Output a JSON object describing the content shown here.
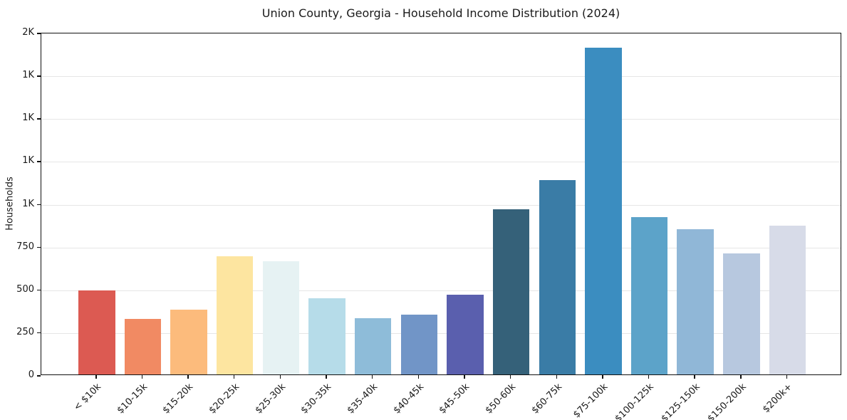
{
  "chart_data": {
    "type": "bar",
    "title": "Union County, Georgia - Household Income Distribution (2024)",
    "ylabel": "Households",
    "xlabel": "",
    "categories": [
      "< $10k",
      "$10-15k",
      "$15-20k",
      "$20-25k",
      "$25-30k",
      "$30-35k",
      "$35-40k",
      "$40-45k",
      "$45-50k",
      "$50-60k",
      "$60-75k",
      "$75-100k",
      "$100-125k",
      "$125-150k",
      "$150-200k",
      "$200k+"
    ],
    "values": [
      490,
      325,
      380,
      690,
      660,
      445,
      330,
      350,
      465,
      965,
      1135,
      1910,
      920,
      850,
      705,
      870
    ],
    "bar_colors": [
      "#dc5a52",
      "#f18a63",
      "#fcbb7c",
      "#fde5a0",
      "#e6f2f3",
      "#b6dce9",
      "#8ebcd9",
      "#7195c7",
      "#5a5fae",
      "#356179",
      "#3a7ca6",
      "#3b8dc0",
      "#5ca3c9",
      "#90b7d7",
      "#b7c8df",
      "#d7dbe8"
    ],
    "ylim": [
      0,
      2000
    ],
    "yticks": [
      {
        "value": 0,
        "label": "0"
      },
      {
        "value": 250,
        "label": "250"
      },
      {
        "value": 500,
        "label": "500"
      },
      {
        "value": 750,
        "label": "750"
      },
      {
        "value": 1000,
        "label": "1K"
      },
      {
        "value": 1250,
        "label": "1K"
      },
      {
        "value": 1500,
        "label": "1K"
      },
      {
        "value": 1750,
        "label": "1K"
      },
      {
        "value": 2000,
        "label": "2K"
      }
    ],
    "grid": "horizontal-only",
    "legend": "none"
  },
  "colors": {
    "background": "#ffffff",
    "gridline": "#e6e6e6",
    "spine": "#111111",
    "text": "#1a1a1a"
  }
}
